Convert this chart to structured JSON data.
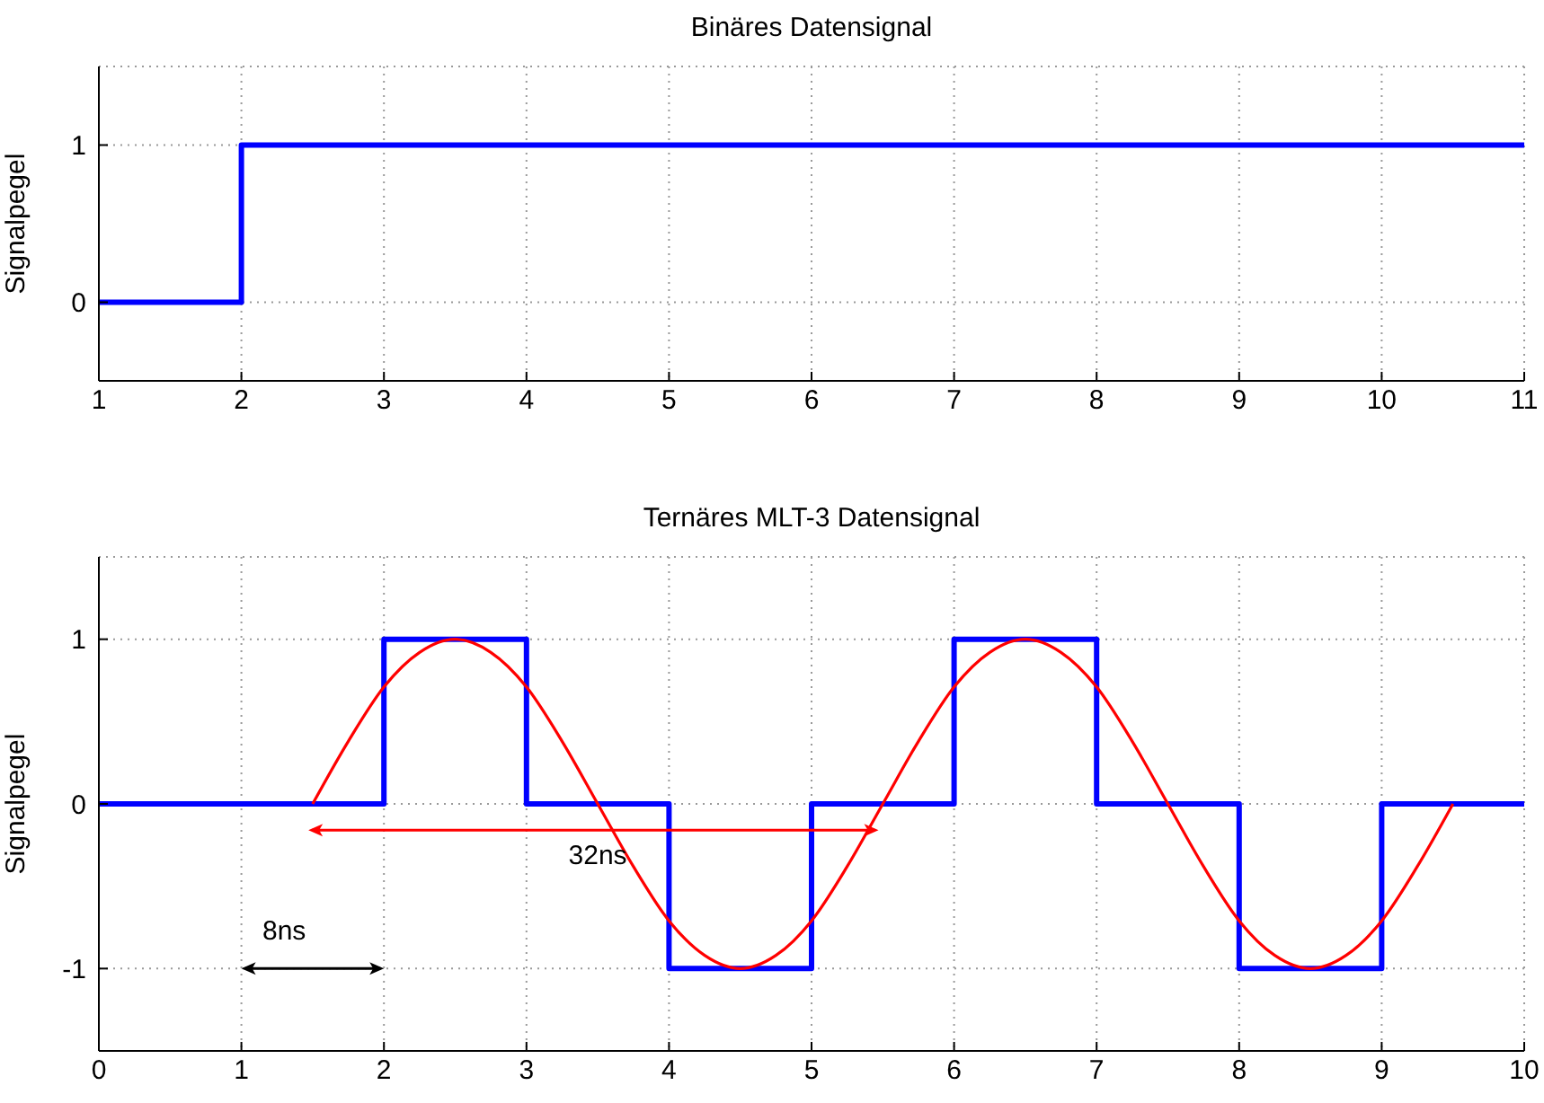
{
  "chart_data": [
    {
      "type": "step",
      "title": "Binäres Datensignal",
      "ylabel": "Signalpegel",
      "xlim": [
        1,
        11
      ],
      "xticks": [
        1,
        2,
        3,
        4,
        5,
        6,
        7,
        8,
        9,
        10,
        11
      ],
      "ylim": [
        -0.5,
        1.5
      ],
      "yticks": [
        0,
        1
      ],
      "grid": true,
      "marker": "none",
      "line_style": "solid",
      "series": [
        {
          "color": "#0000ff",
          "x": [
            1,
            2,
            11
          ],
          "values": [
            0,
            1,
            1
          ]
        }
      ]
    },
    {
      "type": "step",
      "title": "Ternäres MLT-3 Datensignal",
      "ylabel": "Signalpegel",
      "xlim": [
        0,
        10
      ],
      "xticks": [
        0,
        1,
        2,
        3,
        4,
        5,
        6,
        7,
        8,
        9,
        10
      ],
      "ylim": [
        -1.5,
        1.5
      ],
      "yticks": [
        -1,
        0,
        1
      ],
      "grid": true,
      "marker": "none",
      "line_style": "solid",
      "annotations": [
        "32ns",
        "8ns"
      ],
      "series": [
        {
          "color": "#0000ff",
          "x": [
            0,
            2,
            3,
            4,
            5,
            6,
            7,
            8,
            9,
            10
          ],
          "values": [
            0,
            1,
            0,
            -1,
            0,
            1,
            0,
            -1,
            0,
            0
          ]
        },
        {
          "type": "line",
          "color": "#ff0000",
          "x": [
            1.5,
            1.75,
            2,
            2.25,
            2.5,
            2.75,
            3,
            3.25,
            3.5,
            3.75,
            4,
            4.25,
            4.5,
            4.75,
            5,
            5.25,
            5.5,
            5.75,
            6,
            6.25,
            6.5,
            6.75,
            7,
            7.25,
            7.5,
            7.75,
            8,
            8.25,
            8.5,
            8.75,
            9,
            9.25,
            9.5
          ],
          "values": [
            0,
            0.38,
            0.71,
            0.92,
            1,
            0.92,
            0.71,
            0.38,
            0,
            -0.38,
            -0.71,
            -0.92,
            -1,
            -0.92,
            -0.71,
            -0.38,
            0,
            0.38,
            0.71,
            0.92,
            1,
            0.92,
            0.71,
            0.38,
            0,
            -0.38,
            -0.71,
            -0.92,
            -1,
            -0.92,
            -0.71,
            -0.38,
            0
          ]
        }
      ]
    }
  ]
}
